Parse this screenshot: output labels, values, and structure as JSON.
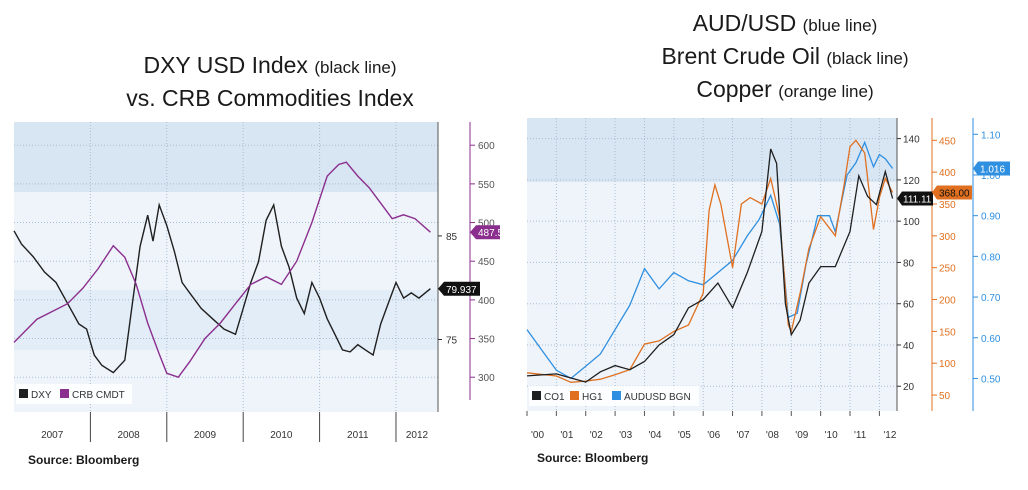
{
  "left": {
    "title_line1": "DXY USD Index",
    "title_line1_note": "(black line)",
    "title_line2": "vs. CRB Commodities Index",
    "source": "Source: Bloomberg"
  },
  "right": {
    "title_line1": "AUD/USD",
    "title_line1_note": "(blue line)",
    "title_line2": "Brent Crude Oil",
    "title_line2_note": "(black line)",
    "title_line3": "Copper",
    "title_line3_note": "(orange line)",
    "source": "Source: Bloomberg"
  },
  "colors": {
    "black": "#1f1f1f",
    "purple": "#8b2f8f",
    "orange": "#e07020",
    "blue": "#2f8fe0",
    "bg_band": "#d8e6f3",
    "bg": "#eef4fa"
  },
  "chart_data": [
    {
      "type": "line",
      "x_ticks": [
        "2007",
        "2008",
        "2009",
        "2010",
        "2011",
        "2012"
      ],
      "x_range": [
        2007.0,
        2012.55
      ],
      "y_left": {
        "range": [
          68,
          96
        ],
        "ticks": [
          75,
          85
        ]
      },
      "y_right": {
        "range": [
          255,
          630
        ],
        "ticks": [
          300,
          350,
          400,
          450,
          500,
          550,
          600
        ]
      },
      "legend": [
        "DXY",
        "CRB CMDT"
      ],
      "last_labels": [
        {
          "series": "DXY",
          "text": "79.937"
        },
        {
          "series": "CRB CMDT",
          "text": "487.5"
        }
      ],
      "series": [
        {
          "name": "DXY",
          "axis": "left",
          "color_key": "black",
          "x": [
            2007.0,
            2007.1,
            2007.25,
            2007.4,
            2007.55,
            2007.7,
            2007.85,
            2007.95,
            2008.05,
            2008.15,
            2008.3,
            2008.45,
            2008.55,
            2008.65,
            2008.75,
            2008.82,
            2008.9,
            2009.0,
            2009.1,
            2009.2,
            2009.3,
            2009.45,
            2009.6,
            2009.75,
            2009.9,
            2010.0,
            2010.1,
            2010.2,
            2010.3,
            2010.4,
            2010.5,
            2010.6,
            2010.7,
            2010.8,
            2010.9,
            2011.0,
            2011.1,
            2011.2,
            2011.3,
            2011.4,
            2011.5,
            2011.6,
            2011.7,
            2011.8,
            2011.9,
            2012.0,
            2012.1,
            2012.2,
            2012.3,
            2012.45
          ],
          "values": [
            85.5,
            84.2,
            83.0,
            81.5,
            80.5,
            78.5,
            76.5,
            76.0,
            73.5,
            72.5,
            71.8,
            73.0,
            78.5,
            84.0,
            87.0,
            84.5,
            88.0,
            86.0,
            83.5,
            80.5,
            79.5,
            78.0,
            77.0,
            76.0,
            75.5,
            78.0,
            80.5,
            82.5,
            86.5,
            88.0,
            84.0,
            82.0,
            79.0,
            77.5,
            80.5,
            79.0,
            77.0,
            75.5,
            74.0,
            73.8,
            74.5,
            74.0,
            73.5,
            76.5,
            78.5,
            80.5,
            79.0,
            79.5,
            79.0,
            79.9
          ]
        },
        {
          "name": "CRB CMDT",
          "axis": "right",
          "color_key": "purple",
          "x": [
            2007.0,
            2007.15,
            2007.3,
            2007.5,
            2007.7,
            2007.9,
            2008.1,
            2008.3,
            2008.45,
            2008.6,
            2008.75,
            2008.9,
            2009.0,
            2009.15,
            2009.3,
            2009.5,
            2009.7,
            2009.9,
            2010.1,
            2010.3,
            2010.5,
            2010.7,
            2010.9,
            2011.1,
            2011.25,
            2011.35,
            2011.5,
            2011.65,
            2011.8,
            2011.95,
            2012.1,
            2012.25,
            2012.45
          ],
          "values": [
            345,
            360,
            375,
            385,
            395,
            415,
            440,
            470,
            455,
            420,
            370,
            330,
            305,
            300,
            320,
            350,
            370,
            395,
            420,
            430,
            420,
            450,
            500,
            560,
            575,
            578,
            560,
            545,
            525,
            505,
            510,
            505,
            487.5
          ]
        }
      ]
    },
    {
      "type": "line",
      "x_ticks": [
        "'00",
        "'01",
        "'02",
        "'03",
        "'04",
        "'05",
        "'06",
        "'07",
        "'08",
        "'09",
        "'10",
        "'11",
        "'12"
      ],
      "x_range": [
        2000.0,
        2012.6
      ],
      "y_oil": {
        "range": [
          8,
          150
        ],
        "ticks": [
          20,
          40,
          60,
          80,
          100,
          120,
          140
        ]
      },
      "y_copper": {
        "range": [
          25,
          485
        ],
        "ticks": [
          50,
          100,
          150,
          200,
          250,
          300,
          350,
          400,
          450
        ]
      },
      "y_aud": {
        "range": [
          0.42,
          1.14
        ],
        "ticks": [
          "0.50",
          "0.60",
          "0.70",
          "0.80",
          "0.90",
          "1.00",
          "1.10"
        ]
      },
      "legend": [
        "CO1",
        "HG1",
        "AUDUSD BGN"
      ],
      "last_labels": [
        {
          "series": "CO1",
          "text": "111.11"
        },
        {
          "series": "HG1",
          "text": "368.00"
        },
        {
          "series": "AUDUSD BGN",
          "text": "1.016"
        }
      ],
      "series": [
        {
          "name": "CO1",
          "axis": "oil",
          "color_key": "black",
          "x": [
            2000.0,
            2001.0,
            2001.5,
            2002.0,
            2002.5,
            2003.0,
            2003.5,
            2004.0,
            2004.5,
            2005.0,
            2005.5,
            2006.0,
            2006.5,
            2007.0,
            2007.5,
            2008.0,
            2008.3,
            2008.5,
            2008.8,
            2009.0,
            2009.3,
            2009.6,
            2010.0,
            2010.5,
            2011.0,
            2011.3,
            2011.6,
            2011.9,
            2012.2,
            2012.45
          ],
          "values": [
            25,
            26,
            24,
            22,
            27,
            30,
            28,
            32,
            40,
            45,
            58,
            62,
            70,
            58,
            75,
            95,
            135,
            128,
            60,
            45,
            52,
            70,
            78,
            78,
            95,
            122,
            112,
            108,
            124,
            111
          ]
        },
        {
          "name": "HG1",
          "axis": "copper",
          "color_key": "orange",
          "x": [
            2000.0,
            2001.0,
            2001.5,
            2002.0,
            2002.5,
            2003.0,
            2003.5,
            2004.0,
            2004.5,
            2005.0,
            2005.5,
            2006.0,
            2006.2,
            2006.4,
            2006.6,
            2007.0,
            2007.3,
            2007.6,
            2008.0,
            2008.3,
            2008.6,
            2008.9,
            2009.0,
            2009.3,
            2009.6,
            2010.0,
            2010.5,
            2010.8,
            2011.0,
            2011.2,
            2011.5,
            2011.8,
            2012.0,
            2012.2,
            2012.45
          ],
          "values": [
            85,
            80,
            70,
            72,
            75,
            82,
            90,
            130,
            135,
            150,
            160,
            210,
            340,
            380,
            350,
            250,
            350,
            360,
            350,
            390,
            330,
            160,
            150,
            210,
            280,
            330,
            300,
            380,
            440,
            450,
            430,
            310,
            360,
            390,
            368
          ]
        },
        {
          "name": "AUDUSD BGN",
          "axis": "aud",
          "color_key": "blue",
          "x": [
            2000.0,
            2000.5,
            2001.0,
            2001.5,
            2002.0,
            2002.5,
            2003.0,
            2003.5,
            2004.0,
            2004.5,
            2005.0,
            2005.5,
            2006.0,
            2006.5,
            2007.0,
            2007.5,
            2007.9,
            2008.3,
            2008.6,
            2008.9,
            2009.2,
            2009.5,
            2009.9,
            2010.3,
            2010.5,
            2010.9,
            2011.2,
            2011.5,
            2011.8,
            2012.0,
            2012.2,
            2012.45
          ],
          "values": [
            0.62,
            0.57,
            0.52,
            0.5,
            0.53,
            0.56,
            0.62,
            0.68,
            0.77,
            0.72,
            0.76,
            0.74,
            0.73,
            0.76,
            0.79,
            0.85,
            0.89,
            0.95,
            0.88,
            0.65,
            0.66,
            0.78,
            0.9,
            0.9,
            0.86,
            1.0,
            1.03,
            1.08,
            1.02,
            1.05,
            1.04,
            1.016
          ]
        }
      ]
    }
  ]
}
